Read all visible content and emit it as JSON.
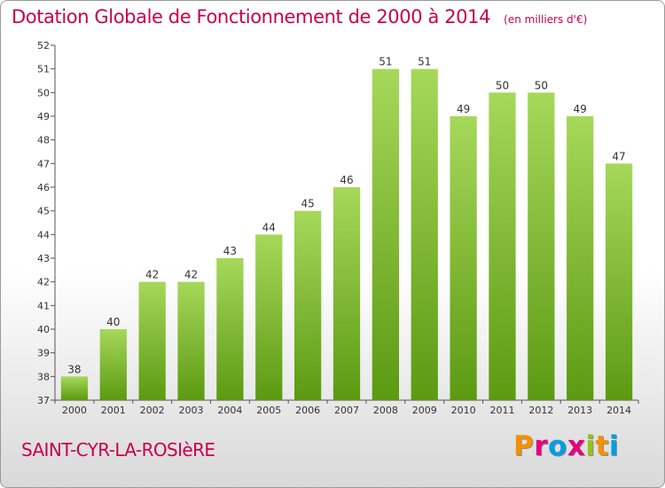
{
  "title": "Dotation Globale de Fonctionnement de 2000 à 2014",
  "unit_label": "(en milliers d'€)",
  "town": "SAINT-CYR-LA-ROSIèRE",
  "logo": {
    "text": "Proxiti",
    "colors": [
      "#f39200",
      "#e5007d",
      "#009fe3",
      "#e5007d",
      "#95c11f",
      "#f39200",
      "#009fe3"
    ]
  },
  "colors": {
    "title": "#c8004b",
    "bar_light": "#a6d85a",
    "bar_dark": "#5c9a12",
    "axis": "#555555"
  },
  "chart_data": {
    "type": "bar",
    "title": "Dotation Globale de Fonctionnement de 2000 à 2014",
    "subtitle": "(en milliers d'€)",
    "xlabel": "",
    "ylabel": "",
    "categories": [
      "2000",
      "2001",
      "2002",
      "2003",
      "2004",
      "2005",
      "2006",
      "2007",
      "2008",
      "2009",
      "2010",
      "2011",
      "2012",
      "2013",
      "2014"
    ],
    "values": [
      38,
      40,
      42,
      42,
      43,
      44,
      45,
      46,
      51,
      51,
      49,
      50,
      50,
      49,
      47
    ],
    "ylim": [
      37,
      52
    ],
    "yticks": [
      37,
      38,
      39,
      40,
      41,
      42,
      43,
      44,
      45,
      46,
      47,
      48,
      49,
      50,
      51,
      52
    ],
    "grid": false,
    "legend": "none"
  }
}
